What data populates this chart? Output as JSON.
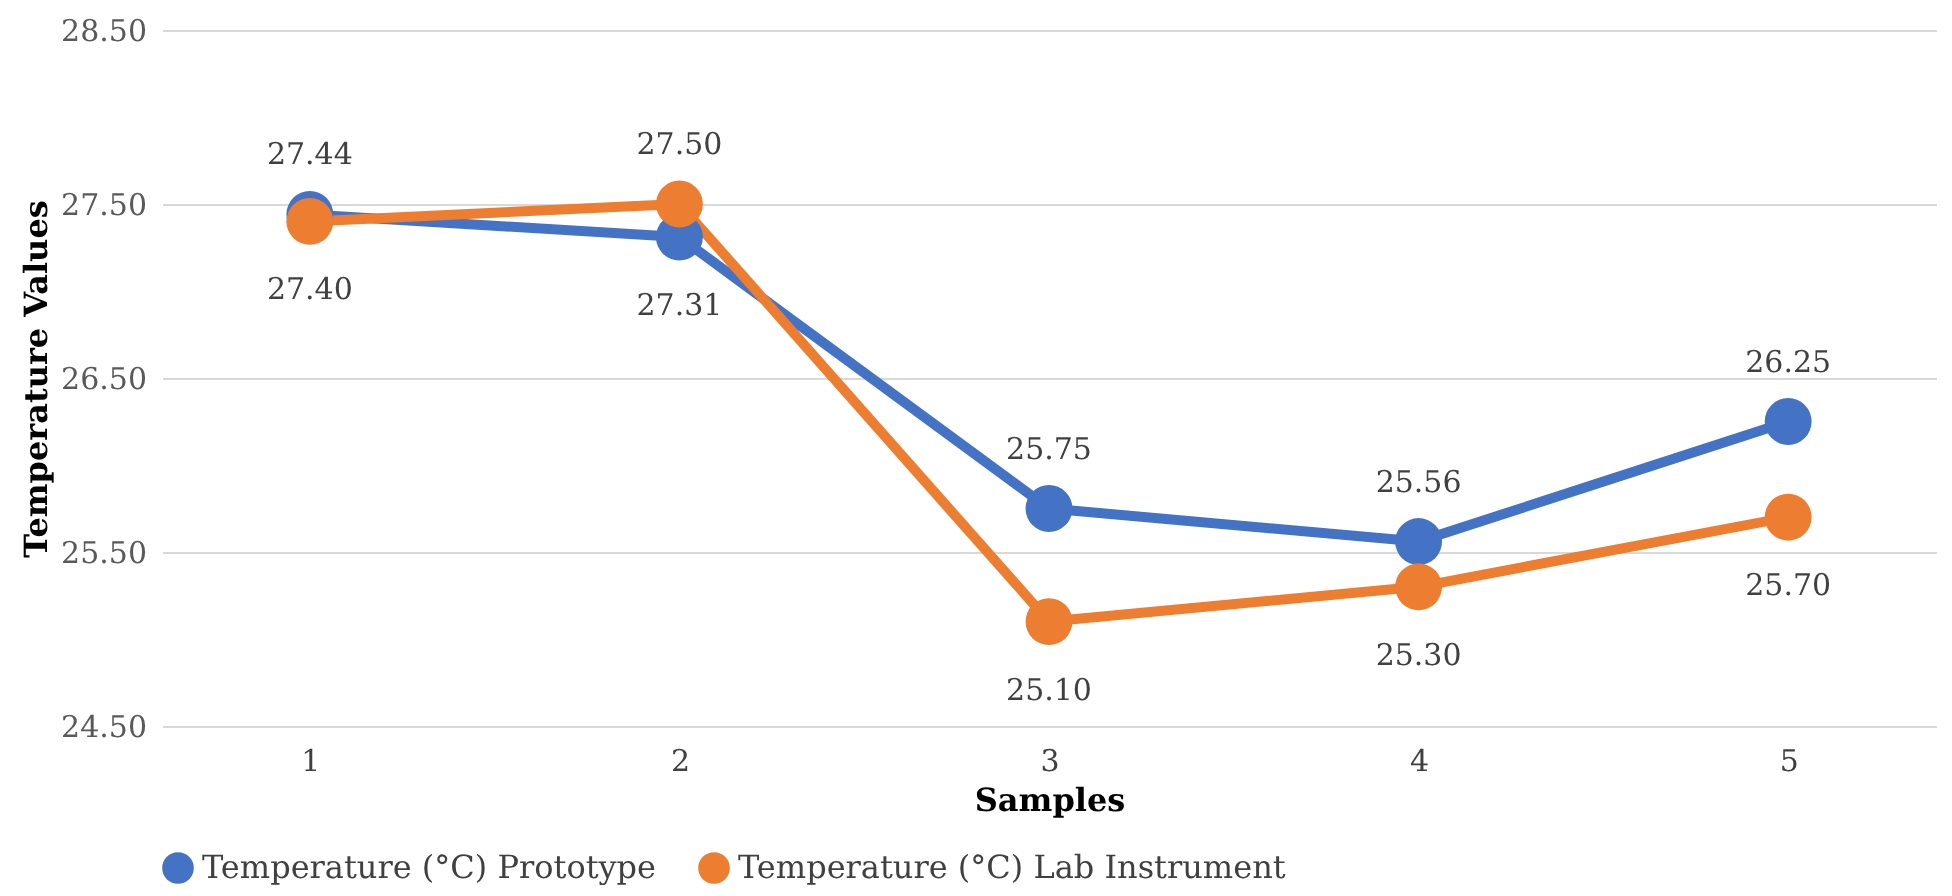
{
  "chart_data": {
    "type": "line",
    "xlabel": "Samples",
    "ylabel": "Temperature Values",
    "categories": [
      "1",
      "2",
      "3",
      "4",
      "5"
    ],
    "series": [
      {
        "name": "Temperature (°C) Prototype",
        "color": "#4472c4",
        "values": [
          27.44,
          27.31,
          25.75,
          25.56,
          26.25
        ],
        "value_labels": [
          "27.44",
          "27.31",
          "25.75",
          "25.56",
          "26.25"
        ]
      },
      {
        "name": "Temperature (°C) Lab Instrument",
        "color": "#ed7d31",
        "values": [
          27.4,
          27.5,
          25.1,
          25.3,
          25.7
        ],
        "value_labels": [
          "27.40",
          "27.50",
          "25.10",
          "25.30",
          "25.70"
        ]
      }
    ],
    "ylim": [
      24.5,
      28.5
    ],
    "yticks": [
      {
        "value": 24.5,
        "label": "24.50"
      },
      {
        "value": 25.5,
        "label": "25.50"
      },
      {
        "value": 26.5,
        "label": "26.50"
      },
      {
        "value": 27.5,
        "label": "27.50"
      },
      {
        "value": 28.5,
        "label": "28.50"
      }
    ],
    "grid": "y",
    "legend": "bottom",
    "marker": "circle",
    "line_style": "solid"
  }
}
